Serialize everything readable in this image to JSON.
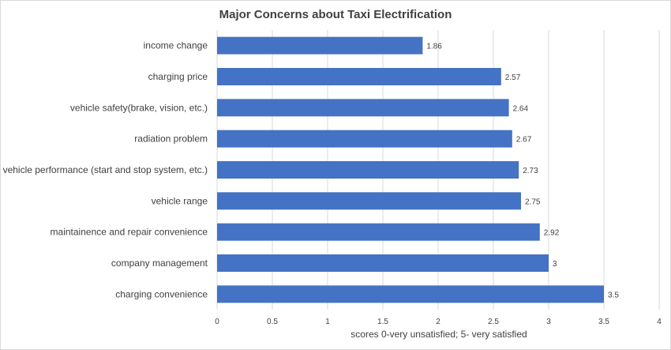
{
  "chart_data": {
    "type": "bar",
    "orientation": "horizontal",
    "title": "Major Concerns about Taxi Electrification",
    "xlabel": "scores 0-very unsatisfied; 5- very satisfied",
    "ylabel": "",
    "categories": [
      "income change",
      "charging price",
      "vehicle safety(brake, vision, etc.)",
      "radiation problem",
      "vehicle performance (start and stop system, etc.)",
      "vehicle range",
      "maintainence and repair convenience",
      "company management",
      "charging convenience"
    ],
    "values": [
      1.86,
      2.57,
      2.64,
      2.67,
      2.73,
      2.75,
      2.92,
      3,
      3.5
    ],
    "value_labels": [
      "1.86",
      "2.57",
      "2.64",
      "2.67",
      "2.73",
      "2.75",
      "2.92",
      "3",
      "3.5"
    ],
    "xlim": [
      0,
      4
    ],
    "x_ticks": [
      0,
      0.5,
      1,
      1.5,
      2,
      2.5,
      3,
      3.5,
      4
    ],
    "x_tick_labels": [
      "0",
      "0.5",
      "1",
      "1.5",
      "2",
      "2.5",
      "3",
      "3.5",
      "4"
    ],
    "grid": "vertical",
    "legend": "none",
    "colors": {
      "bar": "#4472c4",
      "grid": "#d9d9d9",
      "text": "#404040"
    }
  }
}
